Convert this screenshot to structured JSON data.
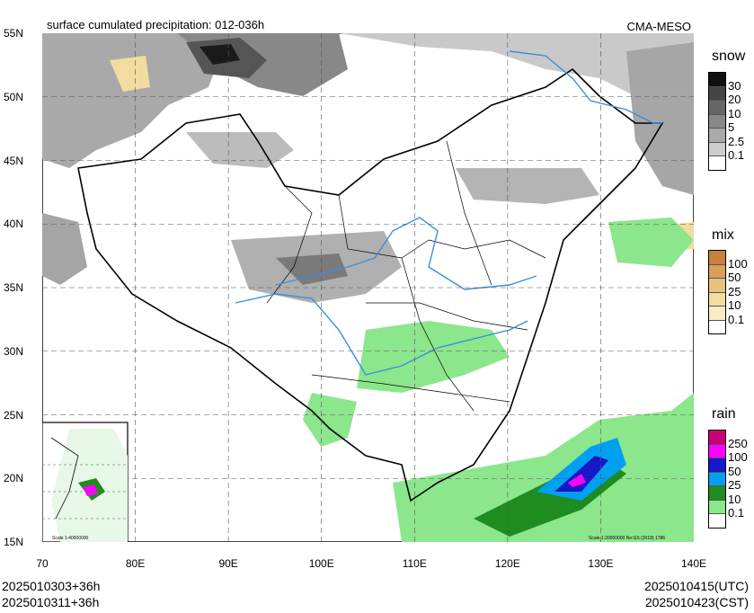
{
  "title": "surface cumulated precipitation: 012-036h",
  "source": "CMA-MESO",
  "lat_labels": [
    "55N",
    "50N",
    "45N",
    "40N",
    "35N",
    "30N",
    "25N",
    "20N",
    "15N"
  ],
  "lon_labels": [
    "70",
    "80E",
    "90E",
    "100E",
    "110E",
    "120E",
    "130E",
    "140E"
  ],
  "inset_scale": "Scale 1:40000000",
  "main_scale": "Scale 1:20000000 No:GS (2019) 1786",
  "footer": {
    "left_line1": "2025010303+36h",
    "left_line2": "2025010311+36h",
    "right_line1": "2025010415(UTC)",
    "right_line2": "2025010423(CST)"
  },
  "legends": {
    "snow": {
      "title": "snow",
      "levels": [
        "30",
        "20",
        "10",
        "5",
        "2.5",
        "0.1"
      ],
      "colors": [
        "#111111",
        "#444444",
        "#666666",
        "#888888",
        "#aaaaaa",
        "#cccccc",
        "#ffffff"
      ]
    },
    "mix": {
      "title": "mix",
      "levels": [
        "100",
        "50",
        "25",
        "10",
        "0.1"
      ],
      "colors": [
        "#c8803c",
        "#d9a05a",
        "#e7c27e",
        "#f3dca0",
        "#f8ecc4",
        "#ffffff"
      ]
    },
    "rain": {
      "title": "rain",
      "levels": [
        "250",
        "100",
        "50",
        "25",
        "10",
        "0.1"
      ],
      "colors": [
        "#c8007a",
        "#ff00ff",
        "#1818c8",
        "#00a0f0",
        "#1e8c1e",
        "#8ce68c",
        "#ffffff"
      ]
    }
  }
}
